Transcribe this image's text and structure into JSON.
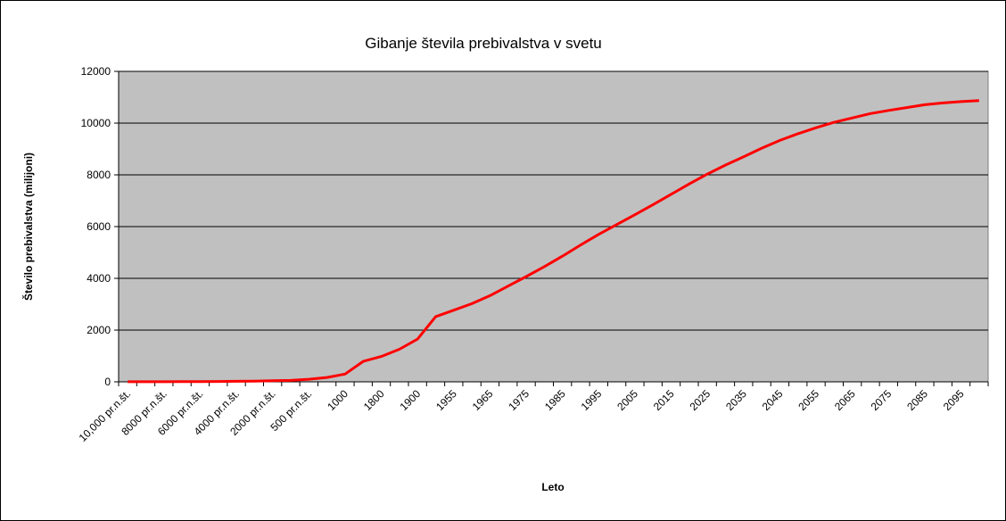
{
  "chart_data": {
    "type": "line",
    "title": "Gibanje števila prebivalstva v svetu",
    "x_label": "Leto",
    "y_label": "Število prebivalstva  (milijoni)",
    "categories": [
      "10,000 pr.n.št.",
      null,
      "8000 pr.n.št.",
      null,
      "6000 pr.n.št.",
      null,
      "4000 pr.n.št.",
      null,
      "2000 pr.n.št.",
      null,
      "500 pr.n.št.",
      null,
      "1000",
      null,
      "1800",
      null,
      "1900",
      null,
      "1955",
      null,
      "1965",
      null,
      "1975",
      null,
      "1985",
      null,
      "1995",
      null,
      "2005",
      null,
      "2015",
      null,
      "2025",
      null,
      "2035",
      null,
      "2045",
      null,
      "2055",
      null,
      "2065",
      null,
      "2075",
      null,
      "2085",
      null,
      "2095",
      null
    ],
    "series": [
      {
        "color": "#ff0000",
        "values": [
          4,
          5,
          5,
          7,
          10,
          14,
          20,
          27,
          40,
          55,
          100,
          170,
          300,
          790,
          980,
          1260,
          1650,
          2520,
          2770,
          3020,
          3330,
          3700,
          4070,
          4450,
          4860,
          5290,
          5700,
          6080,
          6460,
          6850,
          7250,
          7650,
          8030,
          8380,
          8700,
          9030,
          9330,
          9590,
          9820,
          10030,
          10200,
          10370,
          10490,
          10600,
          10710,
          10780,
          10830,
          10870
        ]
      }
    ],
    "ylim": [
      0,
      12000
    ],
    "yticks": [
      0,
      2000,
      4000,
      6000,
      8000,
      10000,
      12000
    ],
    "grid": true,
    "plot_background": "#c0c0c0"
  }
}
